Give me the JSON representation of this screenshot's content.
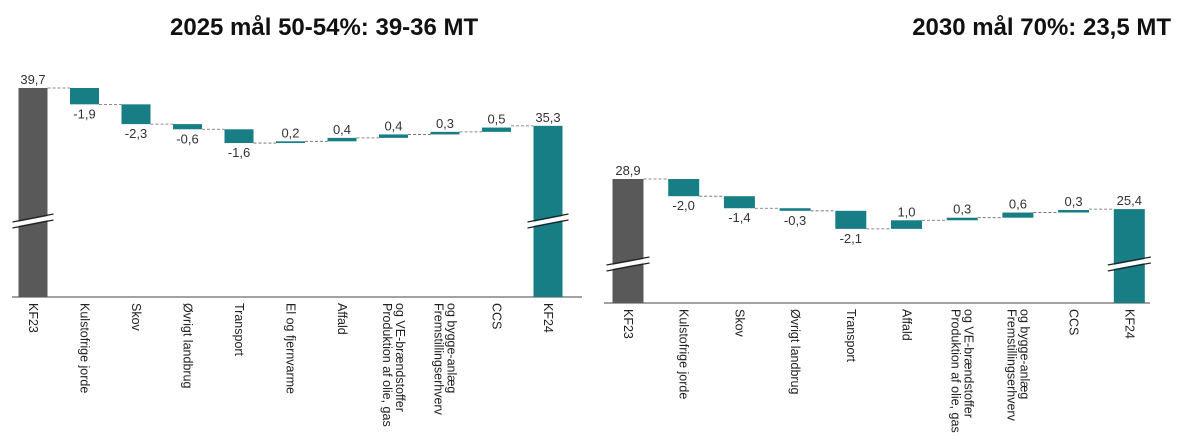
{
  "colors": {
    "total": "#595959",
    "delta": "#177e86",
    "connector": "#666666",
    "axis": "#444444"
  },
  "chart_data": [
    {
      "type": "bar",
      "subtype": "waterfall",
      "title": "2025 mål 50-54%:  39-36 MT",
      "axis_break": true,
      "categories": [
        "KF23",
        "Kulstofrige jorde",
        "Skov",
        "Øvrigt landbrug",
        "Transport",
        "El og fjernvarme",
        "Affald",
        "Produktion af olie, gas og VE-brændstoffer",
        "Fremstillingserhverv og bygge-anlæg",
        "CCS",
        "KF24"
      ],
      "category_lines": [
        [
          "KF23"
        ],
        [
          "Kulstofrige jorde"
        ],
        [
          "Skov"
        ],
        [
          "Øvrigt landbrug"
        ],
        [
          "Transport"
        ],
        [
          "El og fjernvarme"
        ],
        [
          "Affald"
        ],
        [
          "Produktion af olie, gas",
          "og VE-brændstoffer"
        ],
        [
          "Fremstillingserhverv",
          "og bygge-anlæg"
        ],
        [
          "CCS"
        ],
        [
          "KF24"
        ]
      ],
      "kinds": [
        "total",
        "delta",
        "delta",
        "delta",
        "delta",
        "delta",
        "delta",
        "delta",
        "delta",
        "delta",
        "total"
      ],
      "values": [
        39.7,
        -1.9,
        -2.3,
        -0.6,
        -1.6,
        0.2,
        0.4,
        0.4,
        0.3,
        0.5,
        35.3
      ],
      "value_labels": [
        "39,7",
        "-1,9",
        "-2,3",
        "-0,6",
        "-1,6",
        "0,2",
        "0,4",
        "0,4",
        "0,3",
        "0,5",
        "35,3"
      ]
    },
    {
      "type": "bar",
      "subtype": "waterfall",
      "title": "2030 mål 70%: 23,5 MT",
      "axis_break": true,
      "categories": [
        "KF23",
        "Kulstofrige jorde",
        "Skov",
        "Øvrigt landbrug",
        "Transport",
        "Affald",
        "Produktion af olie, gas og VE-brændstoffer",
        "Fremstillingserhverv og bygge-anlæg",
        "CCS",
        "KF24"
      ],
      "category_lines": [
        [
          "KF23"
        ],
        [
          "Kulstofrige jorde"
        ],
        [
          "Skov"
        ],
        [
          "Øvrigt landbrug"
        ],
        [
          "Transport"
        ],
        [
          "Affald"
        ],
        [
          "Produktion af olie, gas",
          "og VE-brændstoffer"
        ],
        [
          "Fremstillingserhverv",
          "og bygge-anlæg"
        ],
        [
          "CCS"
        ],
        [
          "KF24"
        ]
      ],
      "kinds": [
        "total",
        "delta",
        "delta",
        "delta",
        "delta",
        "delta",
        "delta",
        "delta",
        "delta",
        "total"
      ],
      "values": [
        28.9,
        -2.0,
        -1.4,
        -0.3,
        -2.1,
        1.0,
        0.3,
        0.6,
        0.3,
        25.4
      ],
      "value_labels": [
        "28,9",
        "-2,0",
        "-1,4",
        "-0,3",
        "-2,1",
        "1,0",
        "0,3",
        "0,6",
        "0,3",
        "25,4"
      ]
    }
  ]
}
